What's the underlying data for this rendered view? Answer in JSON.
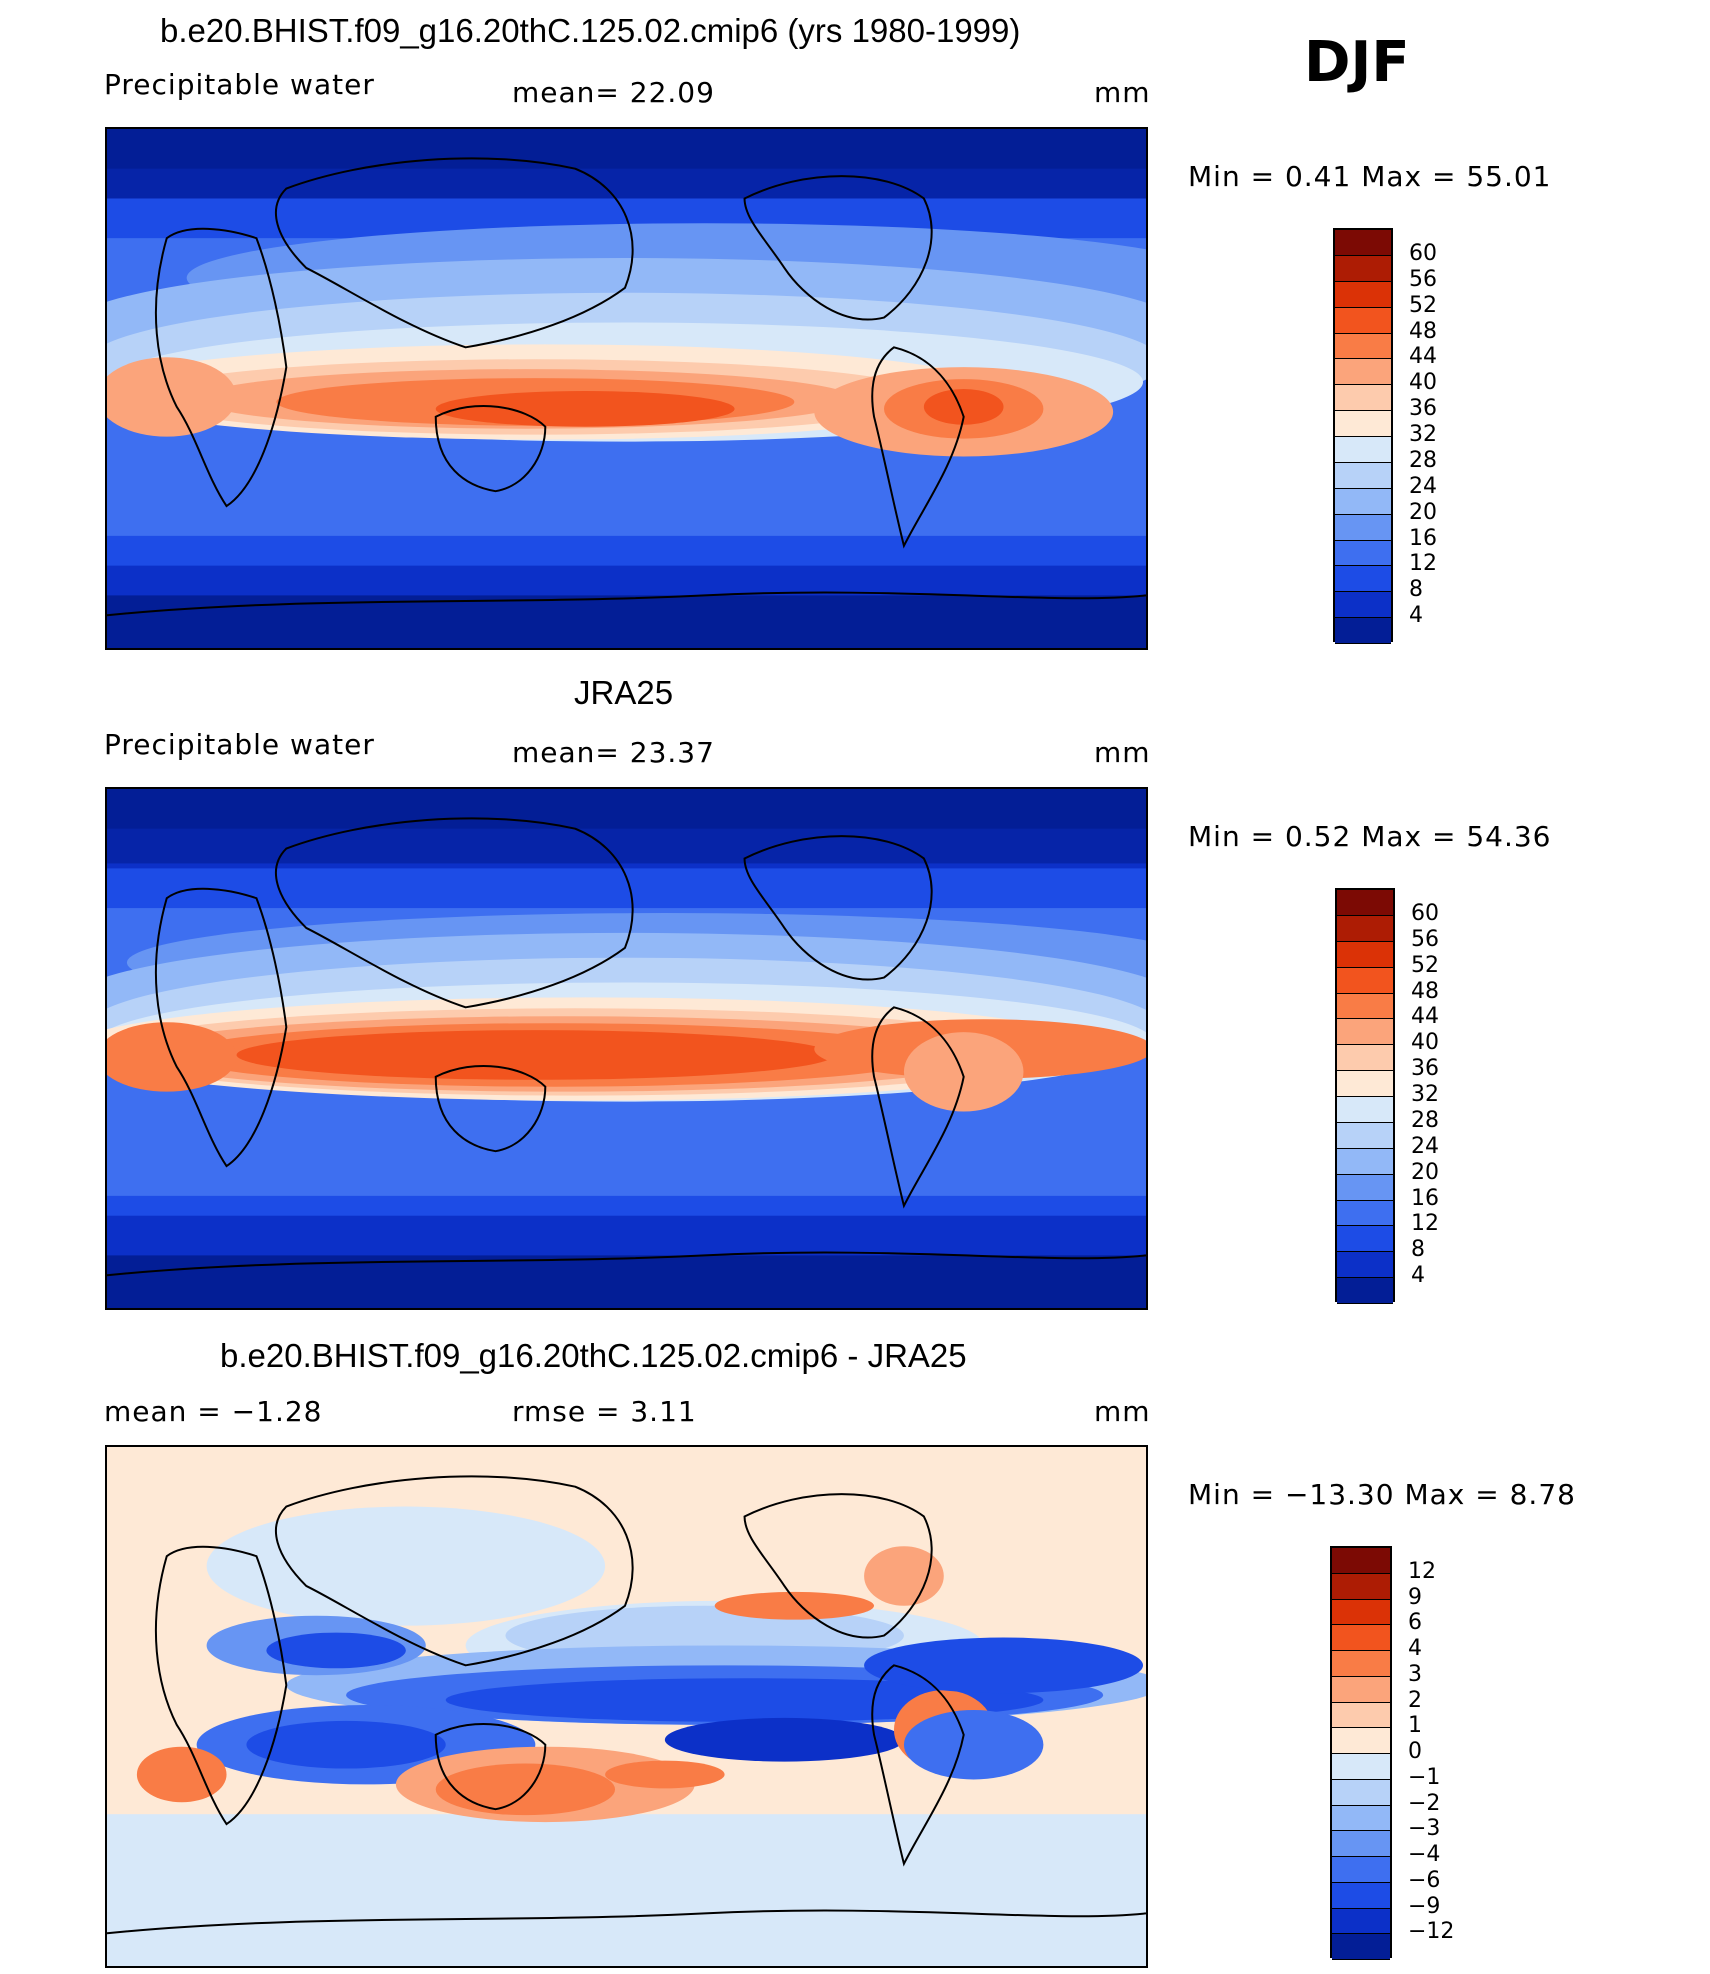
{
  "season": "DJF",
  "panels": [
    {
      "title": "b.e20.BHIST.f09_g16.20thC.125.02.cmip6 (yrs 1980-1999)",
      "left_label": "Precipitable  water",
      "mid_label": "mean=   22.09",
      "units": "mm",
      "minmax": "Min  =     0.41  Max  =     55.01",
      "colorbar_labels": [
        "60",
        "56",
        "52",
        "48",
        "44",
        "40",
        "36",
        "32",
        "28",
        "24",
        "20",
        "16",
        "12",
        "8",
        "4"
      ]
    },
    {
      "title": "JRA25",
      "left_label": "Precipitable  water",
      "mid_label": "mean=   23.37",
      "units": "mm",
      "minmax": "Min  =     0.52  Max  =     54.36",
      "colorbar_labels": [
        "60",
        "56",
        "52",
        "48",
        "44",
        "40",
        "36",
        "32",
        "28",
        "24",
        "20",
        "16",
        "12",
        "8",
        "4"
      ]
    },
    {
      "title": "b.e20.BHIST.f09_g16.20thC.125.02.cmip6 - JRA25",
      "left_label": "mean  =    −1.28",
      "mid_label": "rmse  =     3.11",
      "units": "mm",
      "minmax": "Min  = −13.30  Max  =     8.78",
      "colorbar_labels": [
        "12",
        "9",
        "6",
        "4",
        "3",
        "2",
        "1",
        "0",
        "−1",
        "−2",
        "−3",
        "−4",
        "−6",
        "−9",
        "−12"
      ]
    }
  ],
  "palette_full": [
    "#7c0a04",
    "#ad1c04",
    "#db3206",
    "#f2541e",
    "#f97c46",
    "#fba47b",
    "#fdcbad",
    "#fee9d6",
    "#d7e8f9",
    "#b7d2f8",
    "#92b8f7",
    "#6795f3",
    "#3e6ff0",
    "#1d4ce6",
    "#0c30c8",
    "#031e96"
  ],
  "palette_diff": [
    "#7c0a04",
    "#ad1c04",
    "#db3206",
    "#f2541e",
    "#f97c46",
    "#fba47b",
    "#fdcbad",
    "#fee9d6",
    "#d7e8f9",
    "#b7d2f8",
    "#92b8f7",
    "#6795f3",
    "#3e6ff0",
    "#1d4ce6",
    "#0c30c8",
    "#031e96"
  ]
}
